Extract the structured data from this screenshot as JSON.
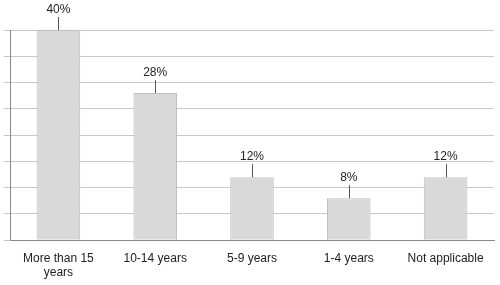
{
  "chart_data": {
    "type": "bar",
    "categories": [
      "More than 15 years",
      "10-14 years",
      "5-9 years",
      "1-4 years",
      "Not applicable"
    ],
    "values": [
      40,
      28,
      12,
      8,
      12
    ],
    "value_labels": [
      "40%",
      "28%",
      "12%",
      "8%",
      "12%"
    ],
    "color": "#d9d9d9",
    "ylim": [
      0,
      40
    ],
    "yticks": [
      0,
      5,
      10,
      15,
      20,
      25,
      30,
      35,
      40
    ],
    "grid": true,
    "data_labels": true,
    "tick_labels": "x"
  }
}
